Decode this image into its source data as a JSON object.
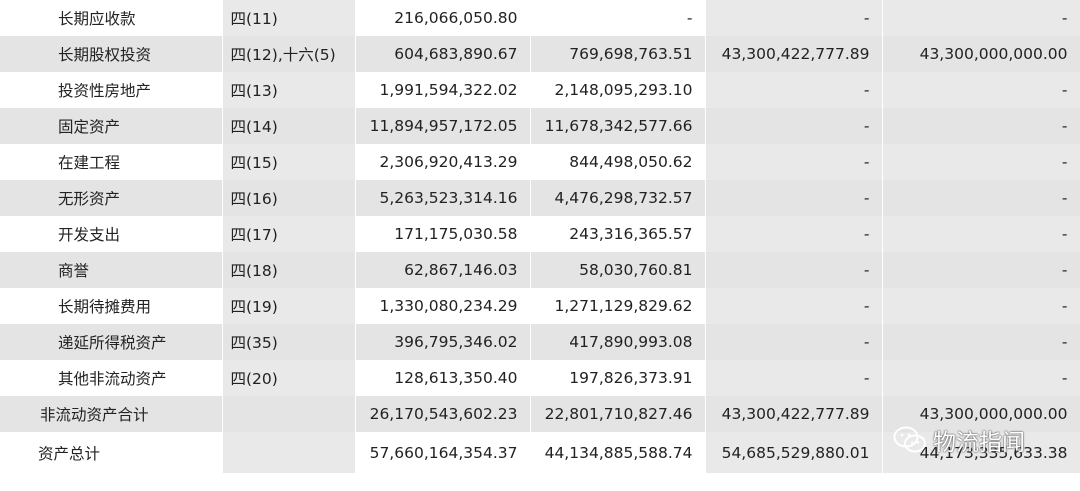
{
  "rows": [
    {
      "name": "长期应收款",
      "note": "四(11)",
      "v1": "216,066,050.80",
      "v2": "-",
      "v3": "-",
      "v4": "-"
    },
    {
      "name": "长期股权投资",
      "note": "四(12),十六(5)",
      "v1": "604,683,890.67",
      "v2": "769,698,763.51",
      "v3": "43,300,422,777.89",
      "v4": "43,300,000,000.00"
    },
    {
      "name": "投资性房地产",
      "note": "四(13)",
      "v1": "1,991,594,322.02",
      "v2": "2,148,095,293.10",
      "v3": "-",
      "v4": "-"
    },
    {
      "name": "固定资产",
      "note": "四(14)",
      "v1": "11,894,957,172.05",
      "v2": "11,678,342,577.66",
      "v3": "-",
      "v4": "-"
    },
    {
      "name": "在建工程",
      "note": "四(15)",
      "v1": "2,306,920,413.29",
      "v2": "844,498,050.62",
      "v3": "-",
      "v4": "-"
    },
    {
      "name": "无形资产",
      "note": "四(16)",
      "v1": "5,263,523,314.16",
      "v2": "4,476,298,732.57",
      "v3": "-",
      "v4": "-"
    },
    {
      "name": "开发支出",
      "note": "四(17)",
      "v1": "171,175,030.58",
      "v2": "243,316,365.57",
      "v3": "-",
      "v4": "-"
    },
    {
      "name": "商誉",
      "note": "四(18)",
      "v1": "62,867,146.03",
      "v2": "58,030,760.81",
      "v3": "-",
      "v4": "-"
    },
    {
      "name": "长期待摊费用",
      "note": "四(19)",
      "v1": "1,330,080,234.29",
      "v2": "1,271,129,829.62",
      "v3": "-",
      "v4": "-"
    },
    {
      "name": "递延所得税资产",
      "note": "四(35)",
      "v1": "396,795,346.02",
      "v2": "417,890,993.08",
      "v3": "-",
      "v4": "-"
    },
    {
      "name": "其他非流动资产",
      "note": "四(20)",
      "v1": "128,613,350.40",
      "v2": "197,826,373.91",
      "v3": "-",
      "v4": "-"
    },
    {
      "name": "非流动资产合计",
      "note": "",
      "v1": "26,170,543,602.23",
      "v2": "22,801,710,827.46",
      "v3": "43,300,422,777.89",
      "v4": "43,300,000,000.00"
    },
    {
      "name": "资产总计",
      "note": "",
      "v1": "57,660,164,354.37",
      "v2": "44,134,885,588.74",
      "v3": "54,685,529,880.01",
      "v4": "44,173,335,633.38"
    }
  ],
  "watermark": {
    "text": "物流指闻",
    "icon": "wechat-icon"
  }
}
